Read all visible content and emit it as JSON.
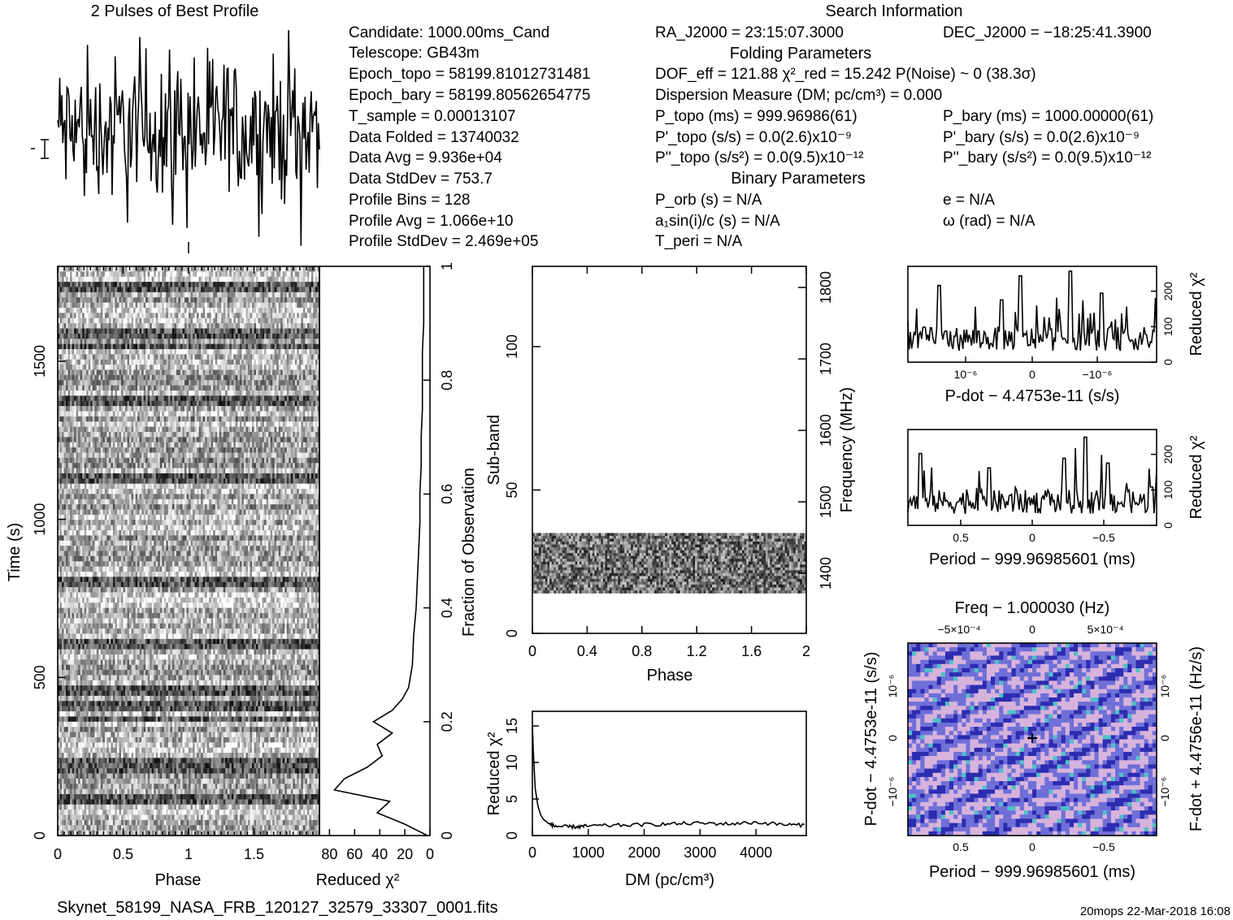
{
  "header": {
    "profile_title": "2 Pulses of Best Profile",
    "search_title": "Search Information",
    "folding_title": "Folding Parameters",
    "binary_title": "Binary Parameters"
  },
  "info_left": [
    "Candidate:  1000.00ms_Cand",
    "Telescope:  GB43m",
    "Epoch_topo = 58199.81012731481",
    "Epoch_bary = 58199.80562654775",
    "T_sample         =  0.00013107",
    "Data Folded      =  13740032",
    "Data Avg         =  9.936e+04",
    "Data StdDev      =  753.7",
    "Profile Bins     =  128",
    "Profile Avg      =  1.066e+10",
    "Profile StdDev   =  2.469e+05"
  ],
  "info_mid": [
    "RA_J2000 = 23:15:07.3000",
    "DOF_eff = 121.88  χ²_red = 15.242  P(Noise) ~ 0   (38.3σ)",
    "Dispersion Measure (DM; pc/cm³) = 0.000",
    "P_topo (ms) =  999.96986(61)",
    "P'_topo (s/s) = 0.0(2.6)x10⁻⁹",
    "P''_topo (s/s²) = 0.0(9.5)x10⁻¹²",
    "P_orb (s) = N/A",
    "a₁sin(i)/c (s) = N/A",
    "T_peri = N/A"
  ],
  "info_right": [
    "DEC_J2000 = −18:25:41.3900",
    "P_bary (ms) =  1000.00000(61)",
    "P'_bary (s/s) = 0.0(2.6)x10⁻⁹",
    "P''_bary (s/s²) = 0.0(9.5)x10⁻¹²",
    "e = N/A",
    "ω (rad) = N/A"
  ],
  "footer": {
    "filename": "Skynet_58199_NASA_FRB_120127_32579_33307_0001.fits",
    "stamp": "20mops  22-Mar-2018  16:08"
  },
  "chart_data": [
    {
      "type": "line",
      "id": "pulse-profile",
      "title": "2 Pulses of Best Profile",
      "x": [
        0,
        2
      ],
      "note_values": "noise-like profile, 256 samples over two pulses"
    },
    {
      "type": "heatmap",
      "id": "time-phase",
      "xlabel": "Phase",
      "ylabel": "Time (s)",
      "xlim": [
        0,
        2
      ],
      "ylim": [
        0,
        1800
      ],
      "xticks": [
        "0",
        "0.5",
        "1",
        "1.5"
      ],
      "yticks": [
        "0",
        "500",
        "1000",
        "1500"
      ],
      "right_axis_label": "Fraction of Observation",
      "right_ticks": [
        "0",
        "0.2",
        "0.4",
        "0.6",
        "0.8",
        "1"
      ]
    },
    {
      "type": "line",
      "id": "time-chi2",
      "xlabel": "Reduced χ²",
      "xticks": [
        "80",
        "60",
        "40",
        "20",
        "0"
      ],
      "xlim": [
        88,
        0
      ],
      "y_fraction": [
        0,
        0.02,
        0.04,
        0.06,
        0.08,
        0.1,
        0.12,
        0.14,
        0.16,
        0.18,
        0.2,
        0.22,
        0.24,
        0.26,
        0.3,
        0.35,
        0.4,
        0.45,
        0.5,
        0.55,
        0.6,
        0.65,
        0.7,
        0.75,
        0.8,
        0.85,
        0.9,
        0.95,
        1.0
      ],
      "values": [
        2,
        20,
        42,
        32,
        76,
        68,
        50,
        38,
        42,
        30,
        45,
        30,
        22,
        17,
        14,
        13,
        11,
        10,
        9,
        8,
        8,
        7,
        7,
        6,
        6,
        6,
        5,
        5,
        5
      ]
    },
    {
      "type": "heatmap",
      "id": "subband-phase",
      "xlabel": "Phase",
      "ylabel": "Sub-band",
      "right_label": "Frequency (MHz)",
      "xticks": [
        "0",
        "0.4",
        "0.8",
        "1.2",
        "1.6",
        "2"
      ],
      "yticks": [
        "0",
        "50",
        "100"
      ],
      "right_ticks": [
        "1400",
        "1500",
        "1600",
        "1700",
        "1800"
      ],
      "ylim": [
        0,
        128
      ],
      "filled_subbands": [
        14,
        35
      ]
    },
    {
      "type": "line",
      "id": "dm-chi2",
      "xlabel": "DM (pc/cm³)",
      "ylabel": "Reduced χ²",
      "xticks": [
        "0",
        "1000",
        "2000",
        "3000",
        "4000"
      ],
      "yticks": [
        "0",
        "5",
        "10",
        "15"
      ],
      "xlim": [
        0,
        4900
      ],
      "ylim": [
        0,
        17
      ],
      "x": [
        0,
        20,
        50,
        100,
        150,
        200,
        300,
        400,
        600,
        800,
        1000,
        1500,
        2000,
        2500,
        3000,
        3500,
        4000,
        4500,
        4900
      ],
      "values": [
        15,
        11,
        6.5,
        4,
        2.8,
        2.2,
        1.6,
        1.3,
        1.2,
        1.2,
        1.3,
        1.4,
        1.5,
        1.6,
        1.7,
        1.6,
        1.8,
        1.5,
        1.4
      ]
    },
    {
      "type": "line",
      "id": "pdot-chi2",
      "xlabel": "P-dot − 4.4753e-11 (s/s)",
      "ylabel": "Reduced χ²",
      "xticks": [
        "10⁻⁶",
        "0",
        "−10⁻⁶"
      ],
      "yticks": [
        "0",
        "100",
        "200"
      ],
      "ylim": [
        0,
        270
      ]
    },
    {
      "type": "line",
      "id": "period-chi2",
      "xlabel": "Period − 999.96985601 (ms)",
      "ylabel": "Reduced χ²",
      "xticks": [
        "0.5",
        "0",
        "−0.5"
      ],
      "yticks": [
        "0",
        "100",
        "200"
      ],
      "ylim": [
        0,
        270
      ]
    },
    {
      "type": "heatmap",
      "id": "period-pdot",
      "title": "Freq − 1.000030 (Hz)",
      "xlabel": "Period − 999.96985601 (ms)",
      "ylabel": "P-dot − 4.4753e-11 (s/s)",
      "right_label": "F-dot + 4.4756e-11 (Hz/s)",
      "xticks": [
        "0.5",
        "0",
        "−0.5"
      ],
      "top_ticks": [
        "−5×10⁻⁴",
        "0",
        "5×10⁻⁴"
      ],
      "yticks": [
        "10⁻⁶",
        "0",
        "−10⁻⁶"
      ],
      "right_ticks": [
        "10⁻⁶",
        "0",
        "−10⁻⁶"
      ],
      "colors": [
        "#6f6fd8",
        "#d7b3dc",
        "#2c2cb0",
        "#4fc1c7"
      ]
    }
  ]
}
